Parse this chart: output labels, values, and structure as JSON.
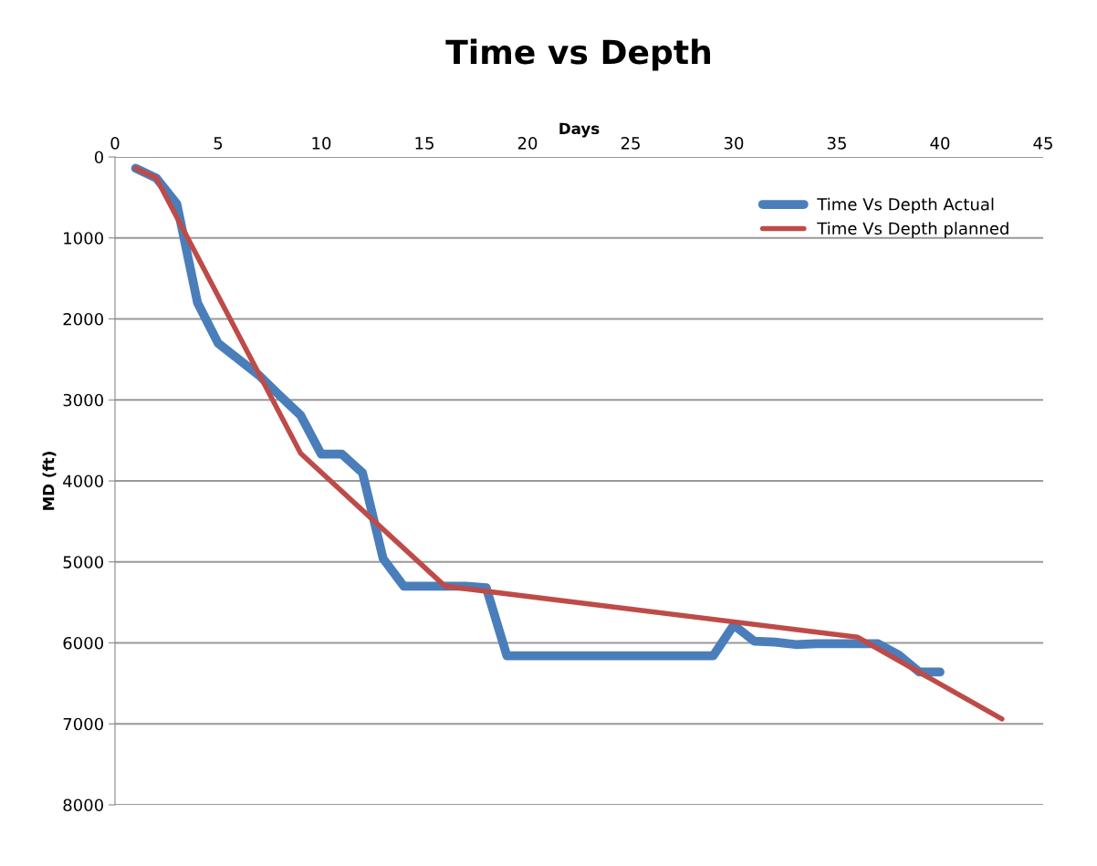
{
  "chart_data": {
    "type": "line",
    "title": "Time vs Depth",
    "xlabel": "Days",
    "ylabel": "MD (ft)",
    "xlim": [
      0,
      45
    ],
    "xticks": [
      0,
      5,
      10,
      15,
      20,
      25,
      30,
      35,
      40,
      45
    ],
    "ylim": [
      8000,
      0
    ],
    "yticks": [
      0,
      1000,
      2000,
      3000,
      4000,
      5000,
      6000,
      7000,
      8000
    ],
    "grid": "y",
    "legend": "top right",
    "marker": "none",
    "line_style": "solid",
    "series": [
      {
        "name": "Time Vs Depth Actual",
        "color": "#4a7ebb",
        "x": [
          1,
          2,
          3,
          4,
          5,
          6,
          7,
          8,
          9,
          10,
          11,
          12,
          13,
          14,
          15,
          16,
          17,
          18,
          19,
          20,
          21,
          22,
          23,
          24,
          25,
          26,
          27,
          28,
          29,
          30,
          31,
          32,
          33,
          34,
          35,
          36,
          37,
          38,
          39,
          40
        ],
        "values": [
          140,
          260,
          580,
          1800,
          2300,
          2500,
          2700,
          2950,
          3190,
          3670,
          3670,
          3900,
          4960,
          5300,
          5300,
          5300,
          5300,
          5320,
          6160,
          6160,
          6160,
          6160,
          6160,
          6160,
          6160,
          6160,
          6160,
          6160,
          6160,
          5780,
          5980,
          5990,
          6020,
          6010,
          6010,
          6010,
          6010,
          6150,
          6360,
          6360
        ]
      },
      {
        "name": "Time Vs Depth planned",
        "color": "#be4b48",
        "x": [
          1,
          2,
          9,
          16,
          36,
          43
        ],
        "values": [
          140,
          260,
          3660,
          5300,
          5930,
          6940
        ]
      }
    ]
  }
}
